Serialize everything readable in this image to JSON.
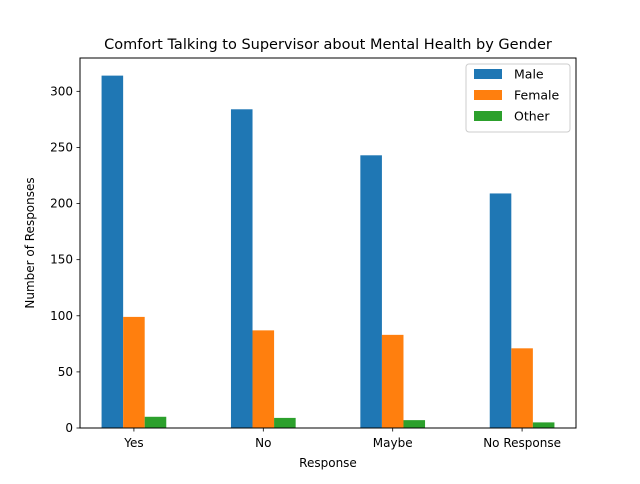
{
  "chart_data": {
    "type": "bar",
    "title": "Comfort Talking to Supervisor about Mental Health by Gender",
    "xlabel": "Response",
    "ylabel": "Number of Responses",
    "categories": [
      "Yes",
      "No",
      "Maybe",
      "No Response"
    ],
    "series": [
      {
        "name": "Male",
        "values": [
          314,
          284,
          243,
          209
        ],
        "color": "#1f77b4"
      },
      {
        "name": "Female",
        "values": [
          99,
          87,
          83,
          71
        ],
        "color": "#ff7f0e"
      },
      {
        "name": "Other",
        "values": [
          10,
          9,
          7,
          5
        ],
        "color": "#2ca02c"
      }
    ],
    "ylim": [
      0,
      329.7
    ],
    "yticks": [
      0,
      50,
      100,
      150,
      200,
      250,
      300
    ],
    "grid": false,
    "legend_position": "top-right"
  }
}
